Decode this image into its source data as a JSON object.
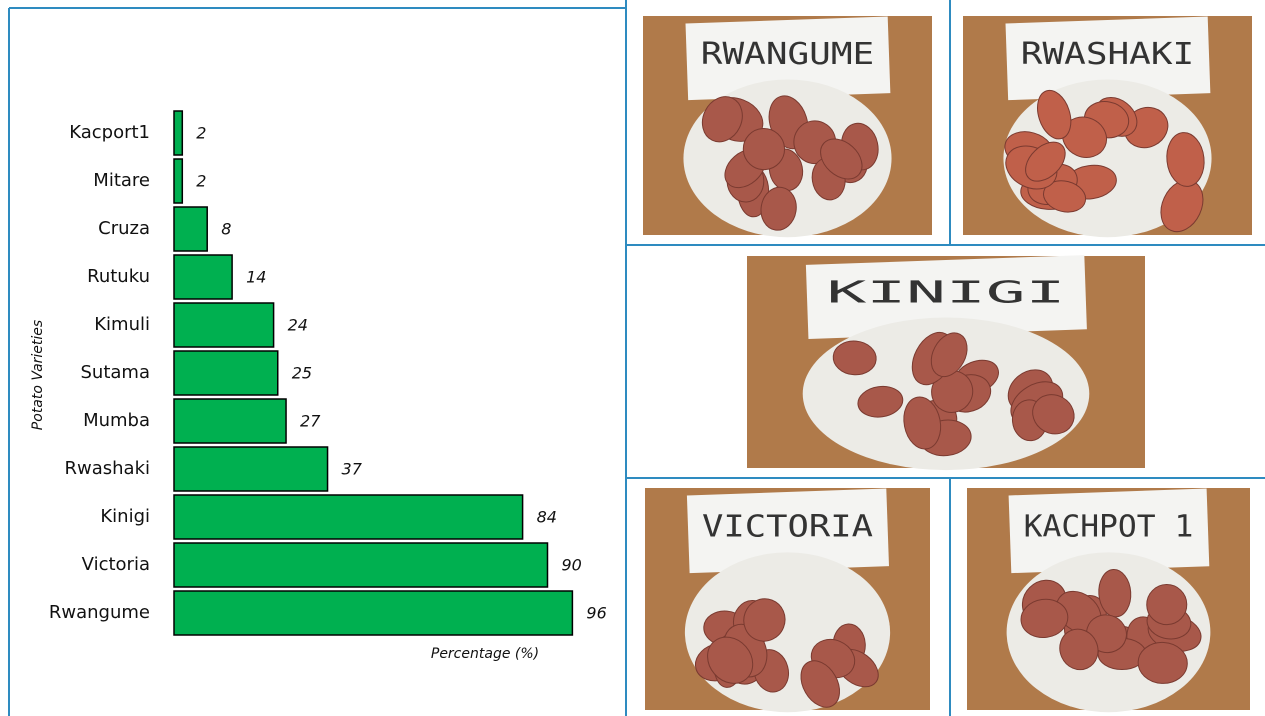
{
  "chart_data": {
    "type": "bar",
    "orientation": "horizontal",
    "xlabel": "Percentage (%)",
    "ylabel": "Potato Varieties",
    "categories": [
      "Kacport1",
      "Mitare",
      "Cruza",
      "Rutuku",
      "Kimuli",
      "Sutama",
      "Mumba",
      "Rwashaki",
      "Kinigi",
      "Victoria",
      "Rwangume"
    ],
    "values": [
      2,
      2,
      8,
      14,
      24,
      25,
      27,
      37,
      84,
      90,
      96
    ],
    "color": "#00b050",
    "xlim": [
      0,
      100
    ]
  },
  "photos": [
    {
      "label": "RWANGUME"
    },
    {
      "label": "RWASHAKI"
    },
    {
      "label": "KINIGI"
    },
    {
      "label": "VICTORIA"
    },
    {
      "label": "KACHPOT 1"
    }
  ]
}
